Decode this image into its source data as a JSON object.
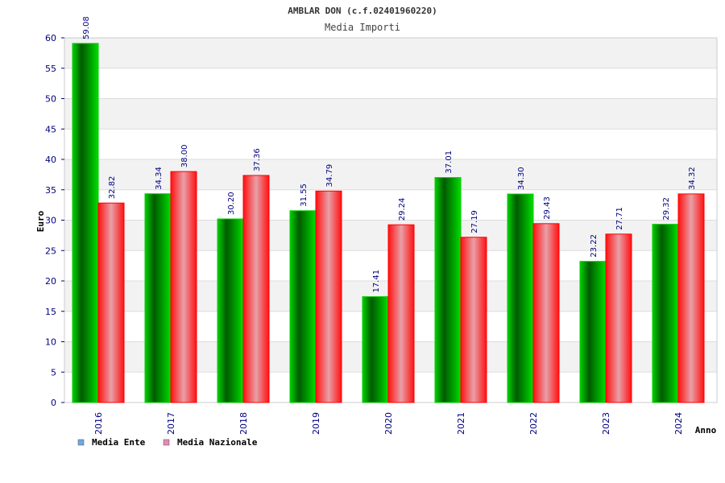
{
  "colors": {
    "series_ente": "#00b800",
    "series_nazionale": "#ee1c24",
    "legend_ente": "#6ea8e8",
    "legend_nazionale": "#e88ab0",
    "text": "#000080",
    "grid_band": "#f2f2f2"
  },
  "legend": [
    {
      "label": "Media Ente",
      "icon": "square-icon"
    },
    {
      "label": "Media Nazionale",
      "icon": "square-icon"
    }
  ],
  "chart_data": {
    "type": "bar",
    "title": "AMBLAR DON (c.f.02401960220)",
    "subtitle": "Media Importi",
    "xlabel": "Anno",
    "ylabel": "Euro",
    "ylim": [
      0,
      60
    ],
    "yticks": [
      "0",
      "5",
      "10",
      "15",
      "20",
      "25",
      "30",
      "35",
      "40",
      "45",
      "50",
      "55",
      "60"
    ],
    "categories": [
      "2016",
      "2017",
      "2018",
      "2019",
      "2020",
      "2021",
      "2022",
      "2023",
      "2024"
    ],
    "series": [
      {
        "name": "Media Ente",
        "values": [
          59.08,
          34.34,
          30.2,
          31.55,
          17.41,
          37.01,
          34.3,
          23.22,
          29.32
        ],
        "labels": [
          "59.08",
          "34.34",
          "30.20",
          "31.55",
          "17.41",
          "37.01",
          "34.30",
          "23.22",
          "29.32"
        ]
      },
      {
        "name": "Media Nazionale",
        "values": [
          32.82,
          38.0,
          37.36,
          34.79,
          29.24,
          27.19,
          29.43,
          27.71,
          34.32
        ],
        "labels": [
          "32.82",
          "38.00",
          "37.36",
          "34.79",
          "29.24",
          "27.19",
          "29.43",
          "27.71",
          "34.32"
        ]
      }
    ],
    "grid": true,
    "legend_position": "bottom-left"
  }
}
